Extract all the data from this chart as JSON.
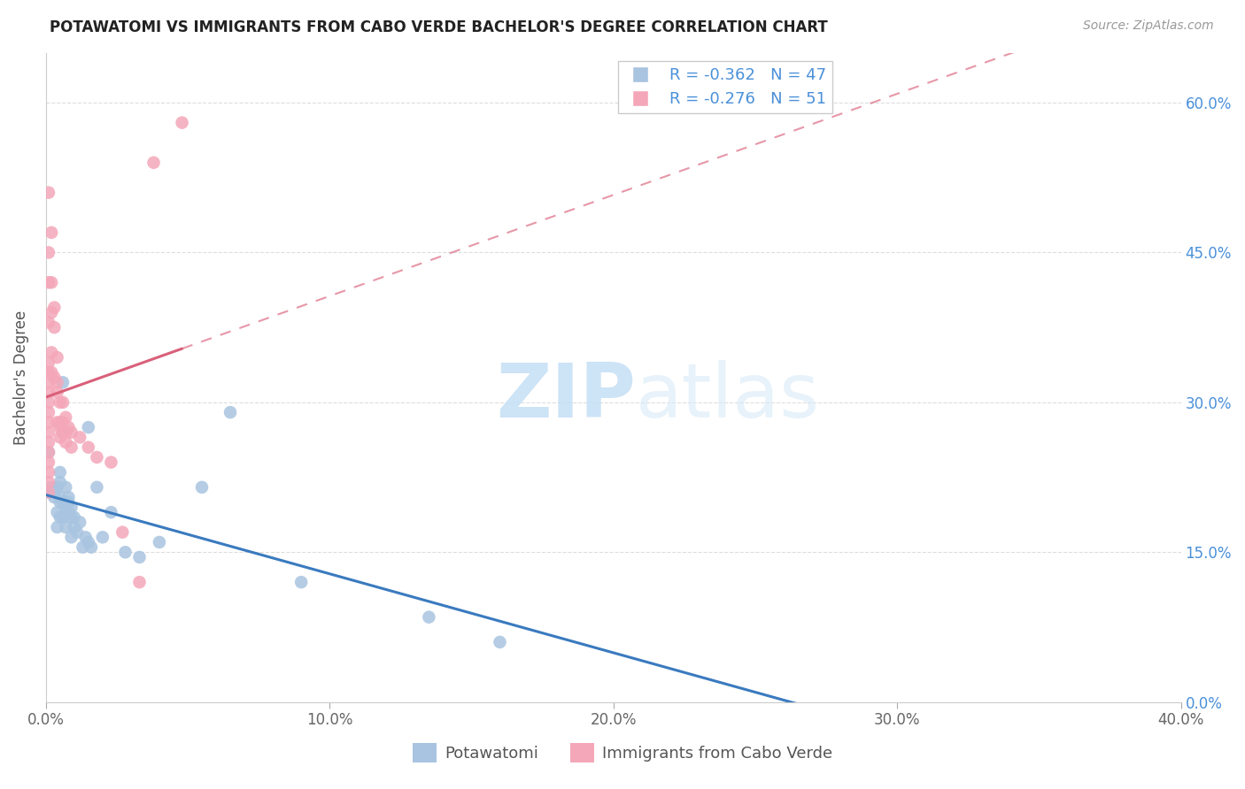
{
  "title": "POTAWATOMI VS IMMIGRANTS FROM CABO VERDE BACHELOR'S DEGREE CORRELATION CHART",
  "source": "Source: ZipAtlas.com",
  "ylabel": "Bachelor's Degree",
  "xlim": [
    0.0,
    0.4
  ],
  "ylim": [
    0.0,
    0.65
  ],
  "xtick_vals": [
    0.0,
    0.1,
    0.2,
    0.3,
    0.4
  ],
  "xtick_labels": [
    "0.0%",
    "10.0%",
    "20.0%",
    "30.0%",
    "40.0%"
  ],
  "ytick_vals": [
    0.0,
    0.15,
    0.3,
    0.45,
    0.6
  ],
  "ytick_labels_right": [
    "0.0%",
    "15.0%",
    "30.0%",
    "45.0%",
    "60.0%"
  ],
  "blue_label": "Potawatomi",
  "pink_label": "Immigrants from Cabo Verde",
  "blue_R": -0.362,
  "blue_N": 47,
  "pink_R": -0.276,
  "pink_N": 51,
  "blue_color": "#a8c4e0",
  "pink_color": "#f4a7b9",
  "blue_line_color": "#3a7abf",
  "pink_line_color": "#d9607a",
  "watermark_zip": "ZIP",
  "watermark_atlas": "atlas",
  "blue_x": [
    0.001,
    0.001,
    0.002,
    0.002,
    0.003,
    0.003,
    0.003,
    0.004,
    0.004,
    0.005,
    0.005,
    0.005,
    0.005,
    0.006,
    0.006,
    0.006,
    0.006,
    0.007,
    0.007,
    0.007,
    0.008,
    0.008,
    0.009,
    0.009,
    0.009,
    0.01,
    0.01,
    0.011,
    0.011,
    0.012,
    0.013,
    0.014,
    0.015,
    0.015,
    0.017,
    0.018,
    0.02,
    0.022,
    0.025,
    0.03,
    0.035,
    0.04,
    0.055,
    0.065,
    0.09,
    0.135,
    0.16
  ],
  "blue_y": [
    0.25,
    0.22,
    0.21,
    0.2,
    0.215,
    0.21,
    0.205,
    0.19,
    0.175,
    0.215,
    0.205,
    0.2,
    0.185,
    0.23,
    0.22,
    0.32,
    0.27,
    0.185,
    0.2,
    0.185,
    0.195,
    0.175,
    0.215,
    0.2,
    0.19,
    0.205,
    0.195,
    0.185,
    0.165,
    0.185,
    0.175,
    0.17,
    0.18,
    0.155,
    0.165,
    0.275,
    0.155,
    0.215,
    0.165,
    0.19,
    0.15,
    0.145,
    0.16,
    0.215,
    0.29,
    0.12,
    0.085
  ],
  "pink_x": [
    0.001,
    0.001,
    0.001,
    0.001,
    0.001,
    0.001,
    0.001,
    0.001,
    0.001,
    0.001,
    0.001,
    0.001,
    0.001,
    0.001,
    0.001,
    0.002,
    0.002,
    0.002,
    0.002,
    0.002,
    0.003,
    0.003,
    0.004,
    0.004,
    0.004,
    0.005,
    0.005,
    0.005,
    0.005,
    0.006,
    0.006,
    0.007,
    0.007,
    0.007,
    0.008,
    0.008,
    0.009,
    0.009,
    0.01,
    0.01,
    0.011,
    0.012,
    0.013,
    0.016,
    0.018,
    0.02,
    0.025,
    0.028,
    0.033,
    0.038,
    0.045
  ],
  "pink_y": [
    0.34,
    0.33,
    0.32,
    0.315,
    0.305,
    0.295,
    0.285,
    0.275,
    0.265,
    0.255,
    0.245,
    0.235,
    0.225,
    0.215,
    0.38,
    0.45,
    0.42,
    0.4,
    0.35,
    0.33,
    0.4,
    0.35,
    0.42,
    0.38,
    0.32,
    0.34,
    0.31,
    0.3,
    0.275,
    0.3,
    0.275,
    0.285,
    0.275,
    0.265,
    0.275,
    0.265,
    0.27,
    0.255,
    0.265,
    0.255,
    0.26,
    0.255,
    0.265,
    0.255,
    0.245,
    0.24,
    0.245,
    0.165,
    0.115,
    0.535,
    0.585
  ]
}
